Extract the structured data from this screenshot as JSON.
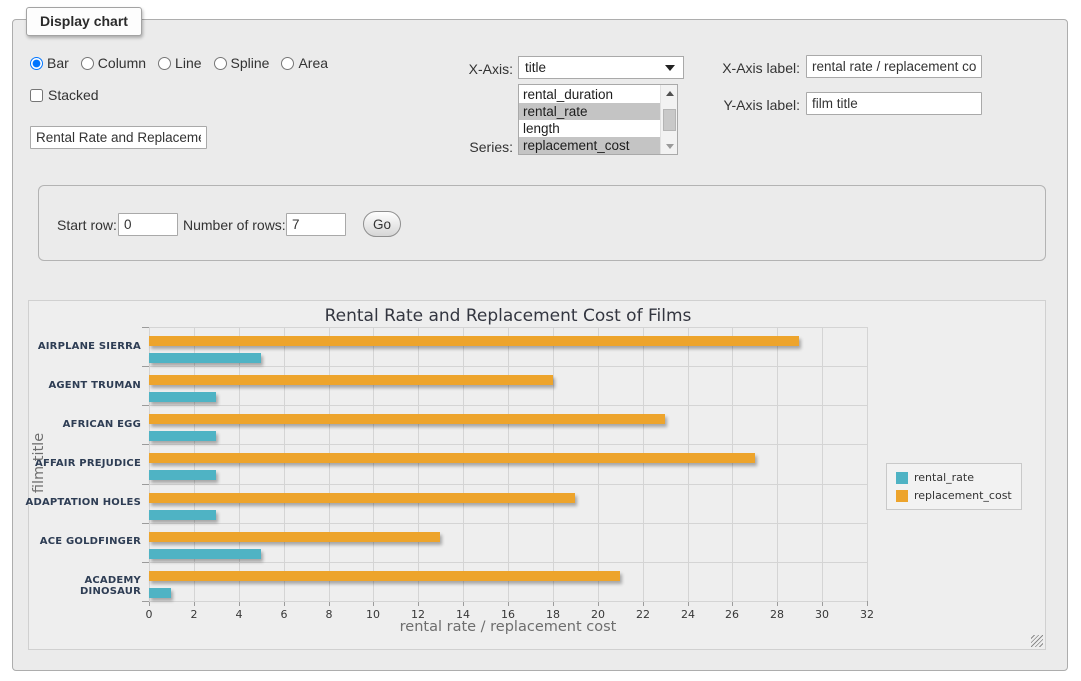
{
  "panel": {
    "legend": "Display chart"
  },
  "chart_type": {
    "options": [
      "Bar",
      "Column",
      "Line",
      "Spline",
      "Area"
    ],
    "selected": "Bar"
  },
  "stacked": {
    "label": "Stacked",
    "checked": false
  },
  "title_input": {
    "value": "Rental Rate and Replacement Cost of Films"
  },
  "xaxis_select": {
    "label": "X-Axis:",
    "value": "title"
  },
  "series_select": {
    "label": "Series:",
    "options": [
      "rental_duration",
      "rental_rate",
      "length",
      "replacement_cost"
    ],
    "selected": [
      "rental_rate",
      "replacement_cost"
    ]
  },
  "xaxis_label_field": {
    "label": "X-Axis label:",
    "value": "rental rate / replacement cost"
  },
  "yaxis_label_field": {
    "label": "Y-Axis label:",
    "value": "film title"
  },
  "row_controls": {
    "start_row_label": "Start row:",
    "start_row_value": "0",
    "num_rows_label": "Number of rows:",
    "num_rows_value": "7",
    "go_label": "Go"
  },
  "chart_data": {
    "type": "bar",
    "title": "Rental Rate and Replacement Cost of Films",
    "categories": [
      "AIRPLANE SIERRA",
      "AGENT TRUMAN",
      "AFRICAN EGG",
      "AFFAIR PREJUDICE",
      "ADAPTATION HOLES",
      "ACE GOLDFINGER",
      "ACADEMY DINOSAUR"
    ],
    "series": [
      {
        "name": "rental_rate",
        "color": "#4FB3C4",
        "values": [
          4.99,
          2.99,
          2.99,
          2.99,
          2.99,
          4.99,
          0.99
        ]
      },
      {
        "name": "replacement_cost",
        "color": "#EDA42C",
        "values": [
          28.99,
          17.99,
          22.99,
          26.99,
          18.99,
          12.99,
          20.99
        ]
      }
    ],
    "xlabel": "rental rate / replacement cost",
    "ylabel": "film title",
    "xlim": [
      0,
      32
    ],
    "xtick_step": 2,
    "grid": true,
    "legend_position": "right"
  }
}
